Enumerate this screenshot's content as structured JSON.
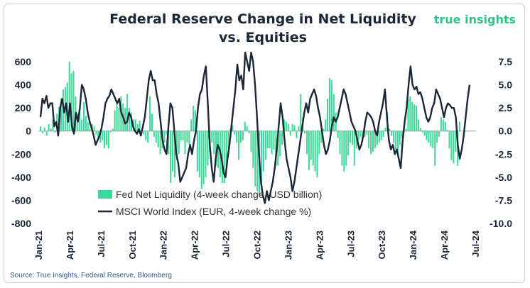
{
  "chart_data": {
    "type": "bar+line",
    "title": "Federal Reserve Change in Net Liquidity",
    "subtitle": "vs. Equities",
    "brand": "true insights",
    "source": "Source: True Insights, Federal Reserve, Bloomberg",
    "x_ticks": [
      "Jan-21",
      "Apr-21",
      "Jul-21",
      "Oct-21",
      "Jan-22",
      "Apr-22",
      "Jul-22",
      "Oct-22",
      "Jan-23",
      "Apr-23",
      "Jul-23",
      "Oct-23",
      "Jan-24",
      "Apr-24",
      "Jul-24"
    ],
    "x_start": "2021-01-01",
    "x_end": "2024-07-01",
    "y_left": {
      "min": -800,
      "max": 600,
      "ticks": [
        "600",
        "400",
        "200",
        "0",
        "-200",
        "-400",
        "-600",
        "-800"
      ]
    },
    "y_right": {
      "min": -10,
      "max": 7.5,
      "ticks": [
        "7.5",
        "5.0",
        "2.5",
        "0.0",
        "-2.5",
        "-5.0",
        "-7.5",
        "-10.0"
      ]
    },
    "grid": false,
    "legend_position": "bottom-left",
    "colors": {
      "bars": "#3fd99a",
      "line": "#1b2737"
    },
    "series": [
      {
        "name": "Fed Net Liquidity (4-week change, USD billion)",
        "type": "bar",
        "axis": "left",
        "values": [
          40,
          -20,
          30,
          -40,
          60,
          20,
          100,
          -10,
          150,
          210,
          280,
          360,
          380,
          420,
          600,
          500,
          520,
          300,
          150,
          200,
          100,
          250,
          130,
          80,
          20,
          60,
          40,
          -30,
          -60,
          -100,
          -80,
          -150,
          -120,
          -150,
          -10,
          20,
          180,
          250,
          200,
          300,
          240,
          200,
          320,
          200,
          160,
          100,
          100,
          60,
          90,
          -20,
          -30,
          -80,
          -100,
          300,
          150,
          -50,
          -100,
          -140,
          -200,
          -150,
          -100,
          -30,
          -200,
          -450,
          -350,
          -400,
          -250,
          -200,
          -80,
          -80,
          -200,
          -100,
          -120,
          100,
          220,
          180,
          -350,
          -400,
          -500,
          -460,
          -400,
          -300,
          -180,
          -100,
          -200,
          -300,
          -320,
          -400,
          -450,
          -450,
          -300,
          -150,
          20,
          50,
          -30,
          -100,
          -250,
          -100,
          -80,
          80,
          40,
          -20,
          -180,
          -320,
          -480,
          -520,
          -550,
          -460,
          -350,
          -250,
          -150,
          -150,
          -200,
          -160,
          -300,
          -300,
          -220,
          -120,
          100,
          80,
          60,
          -40,
          60,
          50,
          -60,
          40,
          320,
          120,
          -20,
          -200,
          -340,
          -250,
          -300,
          -350,
          -400,
          -200,
          -100,
          20,
          100,
          280,
          460,
          440,
          320,
          160,
          -60,
          -200,
          -300,
          -350,
          -300,
          -210,
          -100,
          -120,
          -300,
          -150,
          -80,
          -50,
          -60,
          -50,
          -30,
          -150,
          -200,
          -180,
          -150,
          -120,
          -100,
          -80,
          -50,
          30,
          160,
          20,
          -40,
          -100,
          -160,
          -200,
          -120,
          -60,
          -10,
          20,
          280,
          300,
          250,
          230,
          220,
          100,
          30,
          -10,
          -40,
          -80,
          -100,
          -130,
          -150,
          -300,
          -100,
          -50,
          120,
          100,
          80,
          10,
          -150,
          -250,
          -280,
          -180,
          -300,
          80
        ]
      },
      {
        "name": "MSCI World Index (EUR, 4-week change %)",
        "type": "line",
        "axis": "right",
        "values": [
          1.5,
          3.5,
          3.0,
          3.8,
          2.5,
          3.0,
          3.0,
          0.5,
          1.0,
          -0.5,
          2.5,
          3.5,
          2.0,
          3.0,
          1.0,
          3.0,
          0.5,
          -0.3,
          2.0,
          1.0,
          2.5,
          5.0,
          4.5,
          3.5,
          2.0,
          1.0,
          0.3,
          -0.5,
          -1.5,
          -1.0,
          -0.5,
          0.3,
          1.5,
          3.0,
          3.5,
          3.8,
          4.5,
          4.0,
          3.5,
          3.0,
          3.5,
          2.0,
          1.5,
          0.8,
          1.0,
          2.0,
          1.5,
          0.5,
          0.0,
          -0.3,
          0.2,
          -0.5,
          0.5,
          1.5,
          3.5,
          5.5,
          6.5,
          5.5,
          5.5,
          4.0,
          3.0,
          1.0,
          -1.0,
          -2.0,
          -2.5,
          0.5,
          3.0,
          2.5,
          0.0,
          -2.5,
          -3.5,
          -5.5,
          -5.0,
          -4.5,
          -4.0,
          -2.5,
          -1.5,
          -2.5,
          -1.0,
          0.0,
          2.5,
          4.0,
          4.5,
          6.0,
          7.0,
          3.0,
          -1.5,
          -4.0,
          -5.5,
          -3.0,
          -1.5,
          -2.0,
          -3.0,
          -4.5,
          -5.0,
          -3.0,
          -1.5,
          0.5,
          2.5,
          4.5,
          7.2,
          5.5,
          6.0,
          4.5,
          8.5,
          7.5,
          6.5,
          8.5,
          7.5,
          5.0,
          1.5,
          -2.5,
          -5.5,
          -7.0,
          -7.8,
          -6.5,
          -7.5,
          -6.5,
          -5.5,
          -4.0,
          -2.0,
          0.5,
          3.0,
          1.5,
          -1.0,
          -3.0,
          -4.0,
          -5.0,
          -6.5,
          -5.5,
          -4.0,
          -2.5,
          -1.0,
          0.5,
          2.0,
          3.0,
          2.0,
          3.5,
          4.0,
          4.5,
          3.8,
          2.5,
          1.5,
          0.0,
          -1.5,
          -2.5,
          -2.0,
          -1.0,
          0.5,
          1.5,
          1.0,
          1.5,
          2.5,
          3.5,
          4.5,
          4.0,
          3.0,
          2.0,
          1.0,
          0.5,
          0.0,
          -1.0,
          -2.0,
          -1.5,
          -0.5,
          1.0,
          2.0,
          1.8,
          1.5,
          1.0,
          0.0,
          -0.5,
          1.0,
          2.0,
          3.0,
          4.5,
          1.5,
          -1.0,
          -2.0,
          -1.5,
          -2.5,
          -2.0,
          -3.0,
          -4.0,
          -1.0,
          1.0,
          2.5,
          5.0,
          7.0,
          5.0,
          4.5,
          4.8,
          4.0,
          4.2,
          3.5,
          2.5,
          1.5,
          1.0,
          1.5,
          2.5,
          3.0,
          4.5,
          4.0,
          3.5,
          2.5,
          1.5,
          2.5,
          3.0,
          2.8,
          2.5,
          2.5,
          1.5,
          -1.5,
          -3.0,
          -2.0,
          -0.5,
          1.5,
          3.5,
          5.0
        ]
      }
    ]
  }
}
